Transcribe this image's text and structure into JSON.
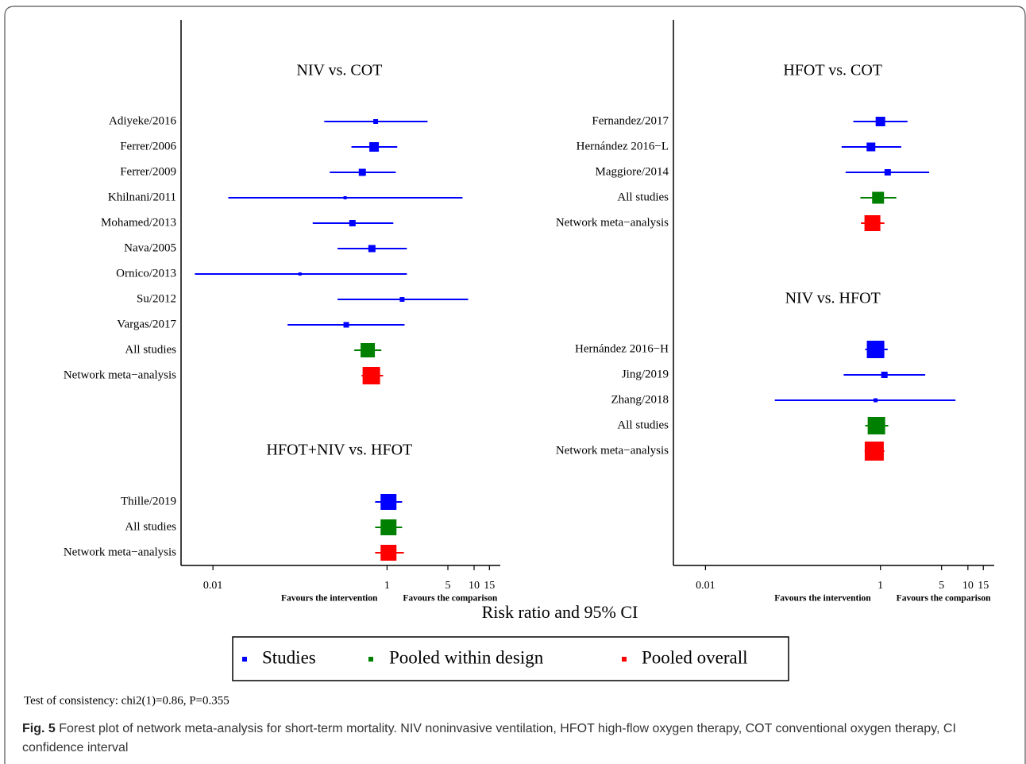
{
  "chart_data": [
    {
      "type": "forest",
      "xscale": "log",
      "xlim": [
        0.0043,
        20
      ],
      "xticks": [
        0.01,
        1,
        5,
        10,
        15
      ],
      "note_left": "Favours the intervention",
      "note_right": "Favours the comparison",
      "groups": [
        {
          "title": "NIV vs. COT",
          "rows": [
            {
              "label": "Adiyeke/2016",
              "color": "#0000ff",
              "estimate": 0.74,
              "lower": 0.19,
              "upper": 2.92,
              "weight": 6
            },
            {
              "label": "Ferrer/2006",
              "color": "#0000ff",
              "estimate": 0.71,
              "lower": 0.39,
              "upper": 1.31,
              "weight": 12
            },
            {
              "label": "Ferrer/2009",
              "color": "#0000ff",
              "estimate": 0.52,
              "lower": 0.22,
              "upper": 1.26,
              "weight": 9
            },
            {
              "label": "Khilnani/2011",
              "color": "#0000ff",
              "estimate": 0.33,
              "lower": 0.015,
              "upper": 7.37,
              "weight": 4
            },
            {
              "label": "Mohamed/2013",
              "color": "#0000ff",
              "estimate": 0.4,
              "lower": 0.14,
              "upper": 1.18,
              "weight": 8
            },
            {
              "label": "Nava/2005",
              "color": "#0000ff",
              "estimate": 0.67,
              "lower": 0.27,
              "upper": 1.69,
              "weight": 9
            },
            {
              "label": "Ornico/2013",
              "color": "#0000ff",
              "estimate": 0.1,
              "lower": 0.0062,
              "upper": 1.69,
              "weight": 4
            },
            {
              "label": "Su/2012",
              "color": "#0000ff",
              "estimate": 1.49,
              "lower": 0.27,
              "upper": 8.54,
              "weight": 6
            },
            {
              "label": "Vargas/2017",
              "color": "#0000ff",
              "estimate": 0.34,
              "lower": 0.072,
              "upper": 1.59,
              "weight": 7
            },
            {
              "label": "All studies",
              "color": "#008000",
              "estimate": 0.6,
              "lower": 0.42,
              "upper": 0.86,
              "weight": 18
            },
            {
              "label": "Network meta−analysis",
              "color": "#ff0000",
              "estimate": 0.66,
              "lower": 0.51,
              "upper": 0.9,
              "weight": 22
            }
          ]
        },
        {
          "title": "HFOT+NIV vs. HFOT",
          "rows": [
            {
              "label": "Thille/2019",
              "color": "#0000ff",
              "estimate": 1.04,
              "lower": 0.73,
              "upper": 1.49,
              "weight": 20
            },
            {
              "label": "All studies",
              "color": "#008000",
              "estimate": 1.04,
              "lower": 0.73,
              "upper": 1.49,
              "weight": 20
            },
            {
              "label": "Network meta−analysis",
              "color": "#ff0000",
              "estimate": 1.04,
              "lower": 0.73,
              "upper": 1.56,
              "weight": 20
            }
          ]
        }
      ]
    },
    {
      "type": "forest",
      "xscale": "log",
      "xlim": [
        0.0043,
        20
      ],
      "xticks": [
        0.01,
        1,
        5,
        10,
        15
      ],
      "note_left": "Favours the intervention",
      "note_right": "Favours the comparison",
      "groups": [
        {
          "title": "HFOT vs. COT",
          "rows": [
            {
              "label": "Fernandez/2017",
              "color": "#0000ff",
              "estimate": 1.0,
              "lower": 0.49,
              "upper": 2.04,
              "weight": 12
            },
            {
              "label": "Hernández 2016−L",
              "color": "#0000ff",
              "estimate": 0.78,
              "lower": 0.36,
              "upper": 1.73,
              "weight": 11
            },
            {
              "label": "Maggiore/2014",
              "color": "#0000ff",
              "estimate": 1.21,
              "lower": 0.4,
              "upper": 3.61,
              "weight": 8
            },
            {
              "label": "All studies",
              "color": "#008000",
              "estimate": 0.94,
              "lower": 0.59,
              "upper": 1.52,
              "weight": 15
            },
            {
              "label": "Network meta−analysis",
              "color": "#ff0000",
              "estimate": 0.81,
              "lower": 0.6,
              "upper": 1.11,
              "weight": 20
            }
          ]
        },
        {
          "title": "NIV vs. HFOT",
          "rows": [
            {
              "label": "Hernández 2016−H",
              "color": "#0000ff",
              "estimate": 0.88,
              "lower": 0.67,
              "upper": 1.21,
              "weight": 22
            },
            {
              "label": "Jing/2019",
              "color": "#0000ff",
              "estimate": 1.11,
              "lower": 0.38,
              "upper": 3.25,
              "weight": 8
            },
            {
              "label": "Zhang/2018",
              "color": "#0000ff",
              "estimate": 0.88,
              "lower": 0.062,
              "upper": 7.21,
              "weight": 5
            },
            {
              "label": "All studies",
              "color": "#008000",
              "estimate": 0.9,
              "lower": 0.67,
              "upper": 1.23,
              "weight": 22
            },
            {
              "label": "Network meta−analysis",
              "color": "#ff0000",
              "estimate": 0.85,
              "lower": 0.66,
              "upper": 1.11,
              "weight": 24
            }
          ]
        }
      ]
    }
  ],
  "x_label": "Risk ratio and 95% CI",
  "legend": [
    {
      "name": "Studies",
      "color": "#0000ff"
    },
    {
      "name": "Pooled within design",
      "color": "#008000"
    },
    {
      "name": "Pooled overall",
      "color": "#ff0000"
    }
  ],
  "footnote": "Test of consistency: chi2(1)=0.86, P=0.355",
  "caption": {
    "label": "Fig. 5",
    "text": "Forest plot of network meta-analysis for short-term mortality. NIV noninvasive ventilation, HFOT high-flow oxygen therapy, COT conventional oxygen therapy, CI confidence interval"
  }
}
